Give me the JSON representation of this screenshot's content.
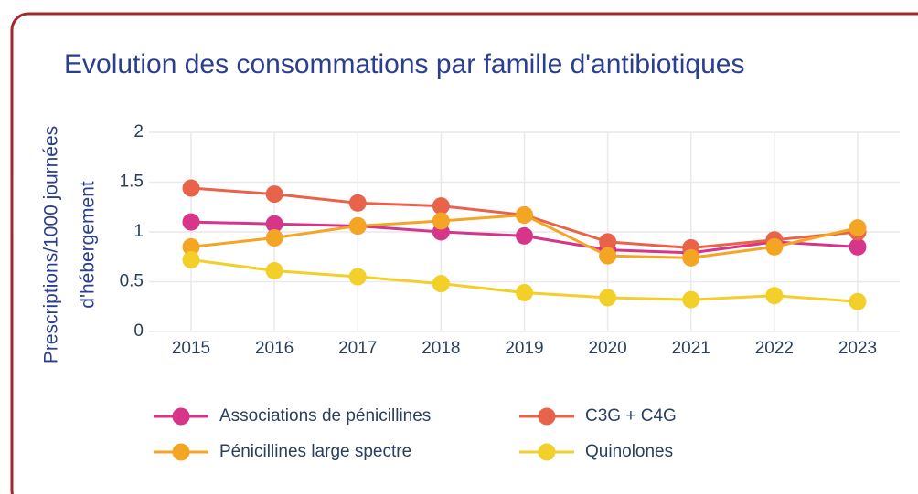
{
  "chart_data": {
    "type": "line",
    "title": "Evolution des consommations par famille d'antibiotiques",
    "ylabel": [
      "Prescriptions/1000 journées",
      "d'hébergement"
    ],
    "categories": [
      "2015",
      "2016",
      "2017",
      "2018",
      "2019",
      "2020",
      "2021",
      "2022",
      "2023"
    ],
    "series": [
      {
        "name": "Associations de pénicillines",
        "color": "#d6358a",
        "values": [
          1.1,
          1.08,
          1.06,
          1.0,
          0.96,
          0.82,
          0.79,
          0.9,
          0.85
        ]
      },
      {
        "name": "C3G + C4G",
        "color": "#e8634a",
        "values": [
          1.44,
          1.38,
          1.29,
          1.26,
          1.17,
          0.9,
          0.84,
          0.92,
          1.0
        ]
      },
      {
        "name": "Pénicillines large spectre",
        "color": "#f5a524",
        "values": [
          0.85,
          0.94,
          1.06,
          1.11,
          1.17,
          0.76,
          0.74,
          0.85,
          1.04
        ]
      },
      {
        "name": "Quinolones",
        "color": "#f3cf2a",
        "values": [
          0.72,
          0.61,
          0.55,
          0.48,
          0.39,
          0.34,
          0.32,
          0.36,
          0.3
        ]
      }
    ],
    "ylim": [
      0,
      2
    ],
    "yticks": [
      0,
      0.5,
      1,
      1.5,
      2
    ],
    "grid": true
  }
}
